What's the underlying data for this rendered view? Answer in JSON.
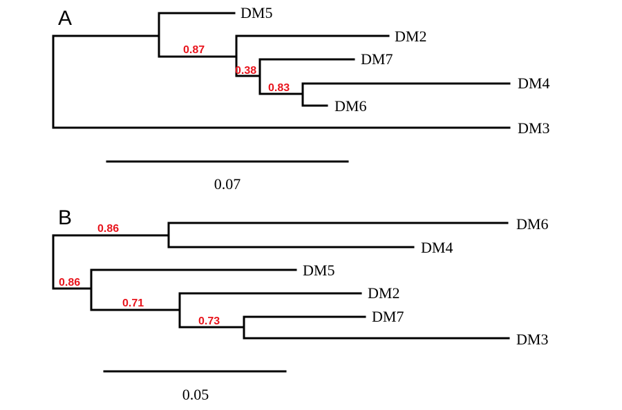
{
  "panels": {
    "A": {
      "label": "A",
      "scale_label": "0.07",
      "leaves": {
        "dm5": "DM5",
        "dm2": "DM2",
        "dm7": "DM7",
        "dm4": "DM4",
        "dm6": "DM6",
        "dm3": "DM3"
      },
      "supports": {
        "s1": "0.87",
        "s2": "0.38",
        "s3": "0.83"
      }
    },
    "B": {
      "label": "B",
      "scale_label": "0.05",
      "leaves": {
        "dm6": "DM6",
        "dm4": "DM4",
        "dm5": "DM5",
        "dm2": "DM2",
        "dm7": "DM7",
        "dm3": "DM3"
      },
      "supports": {
        "s1": "0.86",
        "s2": "0.86",
        "s3": "0.71",
        "s4": "0.73"
      }
    }
  },
  "colors": {
    "support_values": "#e8141c",
    "branches": "#000000"
  }
}
